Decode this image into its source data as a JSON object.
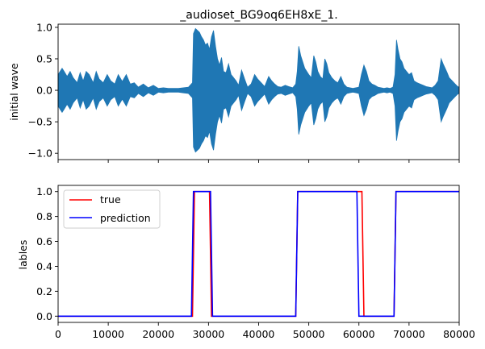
{
  "chart_data": [
    {
      "type": "line",
      "title": "_audioset_BG9oq6EH8xE_1.",
      "ylabel": "initial wave",
      "xlabel": "",
      "xlim": [
        0,
        80000
      ],
      "ylim": [
        -1.1,
        1.05
      ],
      "yticks": [
        -1.0,
        -0.5,
        0.0,
        0.5,
        1.0
      ],
      "ytick_labels": [
        "−1.0",
        "−0.5",
        "0.0",
        "0.5",
        "1.0"
      ],
      "xticks": [
        0,
        10000,
        20000,
        30000,
        40000,
        50000,
        60000,
        70000,
        80000
      ],
      "xtick_labels_visible": false,
      "grid": false,
      "series": [
        {
          "color": "#1f77b4",
          "envelope": [
            [
              0,
              0.25
            ],
            [
              400,
              0.3
            ],
            [
              800,
              0.35
            ],
            [
              1200,
              0.3
            ],
            [
              1800,
              0.22
            ],
            [
              2400,
              0.3
            ],
            [
              3000,
              0.2
            ],
            [
              3800,
              0.12
            ],
            [
              4400,
              0.28
            ],
            [
              5000,
              0.15
            ],
            [
              5600,
              0.3
            ],
            [
              6200,
              0.25
            ],
            [
              7000,
              0.12
            ],
            [
              7600,
              0.3
            ],
            [
              8200,
              0.18
            ],
            [
              9000,
              0.12
            ],
            [
              9800,
              0.25
            ],
            [
              10500,
              0.15
            ],
            [
              11300,
              0.1
            ],
            [
              12000,
              0.25
            ],
            [
              12800,
              0.14
            ],
            [
              13600,
              0.25
            ],
            [
              14400,
              0.1
            ],
            [
              15200,
              0.12
            ],
            [
              16000,
              0.05
            ],
            [
              17000,
              0.1
            ],
            [
              18000,
              0.04
            ],
            [
              19000,
              0.08
            ],
            [
              20000,
              0.03
            ],
            [
              21000,
              0.04
            ],
            [
              22000,
              0.03
            ],
            [
              23000,
              0.03
            ],
            [
              24000,
              0.03
            ],
            [
              25000,
              0.04
            ],
            [
              26000,
              0.05
            ],
            [
              26800,
              0.12
            ],
            [
              27000,
              0.9
            ],
            [
              27400,
              0.98
            ],
            [
              27800,
              0.95
            ],
            [
              28200,
              0.92
            ],
            [
              28600,
              0.85
            ],
            [
              29000,
              0.8
            ],
            [
              29400,
              0.72
            ],
            [
              29800,
              0.75
            ],
            [
              30200,
              0.65
            ],
            [
              30600,
              0.85
            ],
            [
              31000,
              0.95
            ],
            [
              31400,
              0.7
            ],
            [
              31800,
              0.5
            ],
            [
              32200,
              0.4
            ],
            [
              32600,
              0.52
            ],
            [
              33000,
              0.3
            ],
            [
              33500,
              0.28
            ],
            [
              34000,
              0.42
            ],
            [
              34500,
              0.25
            ],
            [
              35000,
              0.2
            ],
            [
              35500,
              0.15
            ],
            [
              36000,
              0.08
            ],
            [
              36600,
              0.32
            ],
            [
              37200,
              0.18
            ],
            [
              37800,
              0.05
            ],
            [
              38500,
              0.1
            ],
            [
              39200,
              0.25
            ],
            [
              39800,
              0.18
            ],
            [
              40500,
              0.12
            ],
            [
              41200,
              0.06
            ],
            [
              42000,
              0.22
            ],
            [
              42600,
              0.15
            ],
            [
              43200,
              0.1
            ],
            [
              43800,
              0.06
            ],
            [
              44500,
              0.05
            ],
            [
              45300,
              0.08
            ],
            [
              46000,
              0.06
            ],
            [
              46800,
              0.04
            ],
            [
              47400,
              0.1
            ],
            [
              47700,
              0.3
            ],
            [
              48000,
              0.7
            ],
            [
              48400,
              0.55
            ],
            [
              48800,
              0.45
            ],
            [
              49200,
              0.35
            ],
            [
              49600,
              0.3
            ],
            [
              50000,
              0.25
            ],
            [
              50500,
              0.2
            ],
            [
              51000,
              0.55
            ],
            [
              51400,
              0.45
            ],
            [
              51800,
              0.3
            ],
            [
              52300,
              0.22
            ],
            [
              52800,
              0.18
            ],
            [
              53200,
              0.5
            ],
            [
              53600,
              0.42
            ],
            [
              54000,
              0.28
            ],
            [
              54600,
              0.2
            ],
            [
              55200,
              0.15
            ],
            [
              55800,
              0.12
            ],
            [
              56400,
              0.22
            ],
            [
              57000,
              0.1
            ],
            [
              57600,
              0.05
            ],
            [
              58200,
              0.04
            ],
            [
              58800,
              0.03
            ],
            [
              59400,
              0.04
            ],
            [
              60000,
              0.05
            ],
            [
              60500,
              0.25
            ],
            [
              61000,
              0.4
            ],
            [
              61500,
              0.3
            ],
            [
              62000,
              0.15
            ],
            [
              62600,
              0.1
            ],
            [
              63200,
              0.08
            ],
            [
              63800,
              0.05
            ],
            [
              64400,
              0.04
            ],
            [
              65000,
              0.03
            ],
            [
              65600,
              0.04
            ],
            [
              66200,
              0.03
            ],
            [
              66800,
              0.05
            ],
            [
              67200,
              0.25
            ],
            [
              67500,
              0.8
            ],
            [
              67800,
              0.65
            ],
            [
              68200,
              0.5
            ],
            [
              68600,
              0.45
            ],
            [
              69000,
              0.35
            ],
            [
              69500,
              0.3
            ],
            [
              70000,
              0.25
            ],
            [
              70500,
              0.28
            ],
            [
              71000,
              0.15
            ],
            [
              71600,
              0.12
            ],
            [
              72200,
              0.1
            ],
            [
              72800,
              0.08
            ],
            [
              73400,
              0.06
            ],
            [
              74000,
              0.05
            ],
            [
              74600,
              0.04
            ],
            [
              75200,
              0.08
            ],
            [
              75800,
              0.15
            ],
            [
              76400,
              0.5
            ],
            [
              76800,
              0.42
            ],
            [
              77200,
              0.35
            ],
            [
              77600,
              0.28
            ],
            [
              78000,
              0.2
            ],
            [
              78600,
              0.15
            ],
            [
              79200,
              0.1
            ],
            [
              79700,
              0.06
            ],
            [
              80000,
              0.05
            ]
          ]
        }
      ]
    },
    {
      "type": "line",
      "title": "",
      "ylabel": "lables",
      "xlabel": "",
      "xlim": [
        0,
        80000
      ],
      "ylim": [
        -0.05,
        1.05
      ],
      "yticks": [
        0.0,
        0.2,
        0.4,
        0.6,
        0.8,
        1.0
      ],
      "ytick_labels": [
        "0.0",
        "0.2",
        "0.4",
        "0.6",
        "0.8",
        "1.0"
      ],
      "xticks": [
        0,
        10000,
        20000,
        30000,
        40000,
        50000,
        60000,
        70000,
        80000
      ],
      "xtick_labels": [
        "0",
        "10000",
        "20000",
        "30000",
        "40000",
        "50000",
        "60000",
        "70000",
        "80000"
      ],
      "grid": false,
      "legend": "top-left",
      "series": [
        {
          "name": "true",
          "color": "#ff0000",
          "x": [
            0,
            26800,
            27200,
            30200,
            30600,
            47400,
            47800,
            60600,
            61000,
            67000,
            67400,
            80000
          ],
          "y": [
            0,
            0,
            1,
            1,
            0,
            0,
            1,
            1,
            0,
            0,
            1,
            1
          ]
        },
        {
          "name": "prediction",
          "color": "#0000ff",
          "x": [
            0,
            26600,
            27000,
            30400,
            30800,
            47400,
            47800,
            59600,
            60000,
            67000,
            67400,
            80000
          ],
          "y": [
            0,
            0,
            1,
            1,
            0,
            0,
            1,
            1,
            0,
            0,
            1,
            1
          ]
        }
      ]
    }
  ]
}
